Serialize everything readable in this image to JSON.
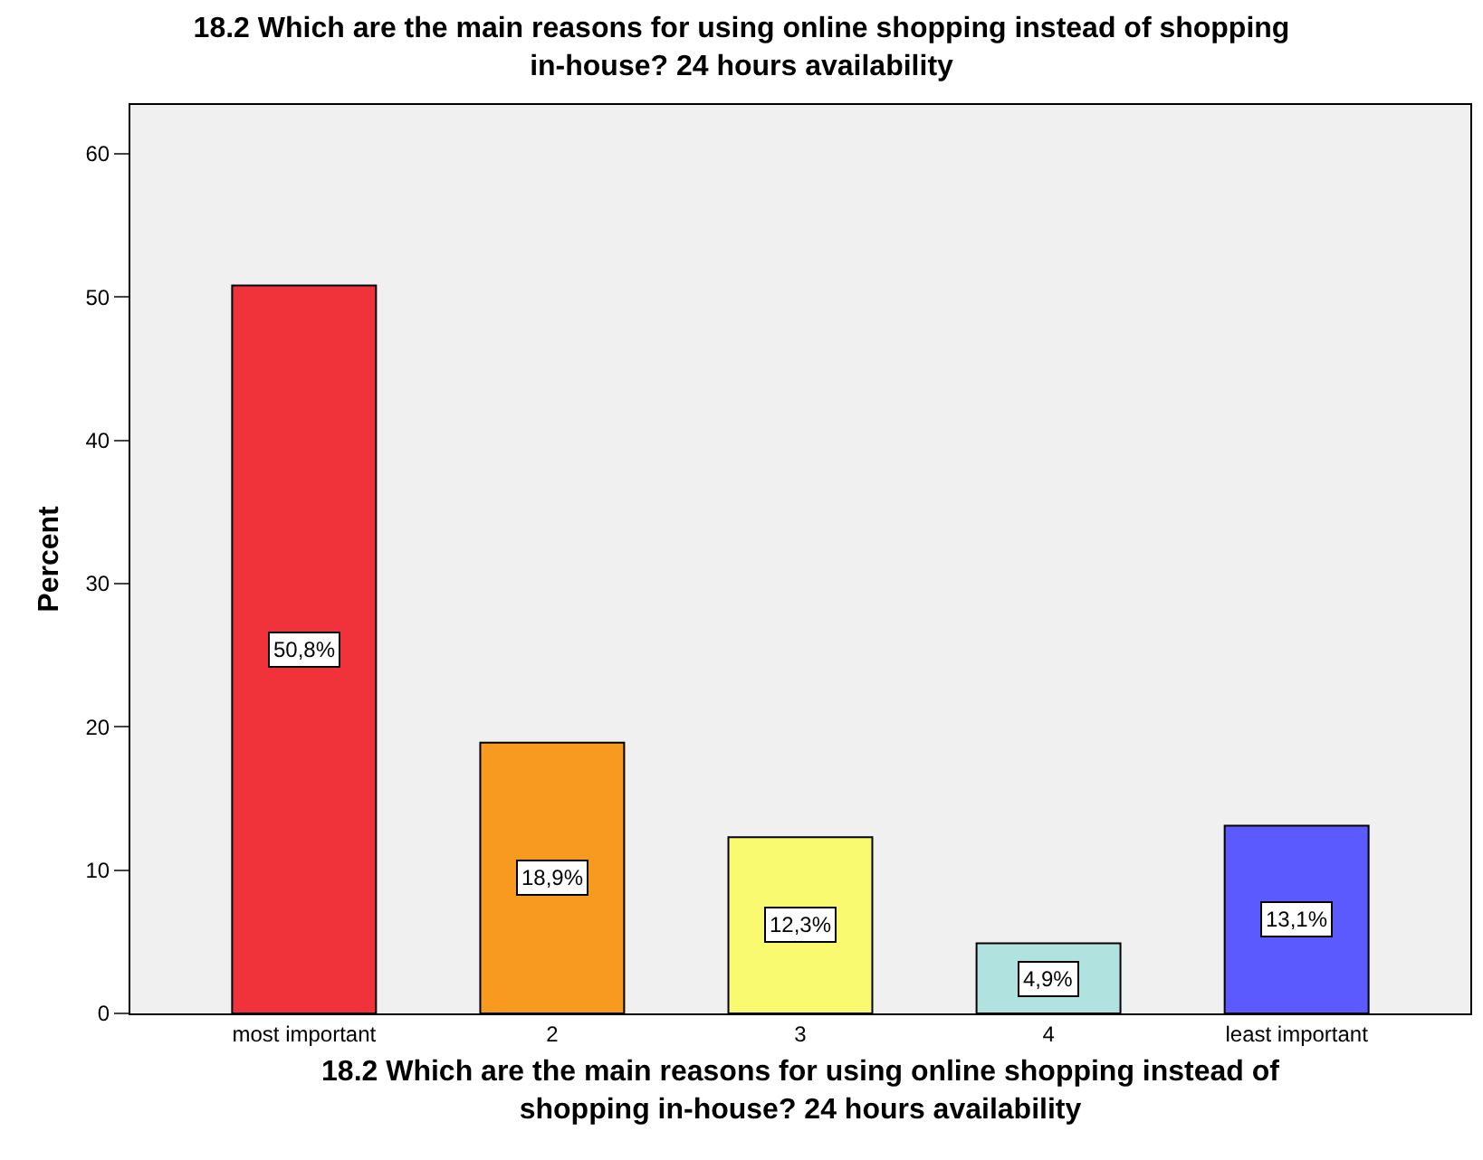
{
  "chart_data": {
    "type": "bar",
    "title": "18.2 Which are the main reasons for using online shopping instead of shopping\nin-house? 24 hours availability",
    "xlabel": "18.2 Which are the main reasons for using online shopping instead of\nshopping in-house? 24 hours availability",
    "ylabel": "Percent",
    "categories": [
      "most important",
      "2",
      "3",
      "4",
      "least important"
    ],
    "values": [
      50.8,
      18.9,
      12.3,
      4.9,
      13.1
    ],
    "colors": [
      "#f0323a",
      "#f89a20",
      "#fafa70",
      "#b0e2e0",
      "#5a5aff"
    ],
    "value_labels": [
      "50,8%",
      "18,9%",
      "12,3%",
      "4,9%",
      "13,1%"
    ],
    "ylim": [
      0,
      63.4
    ],
    "yticks": [
      0,
      10,
      20,
      30,
      40,
      50,
      60
    ],
    "grid": false,
    "legend": false
  }
}
